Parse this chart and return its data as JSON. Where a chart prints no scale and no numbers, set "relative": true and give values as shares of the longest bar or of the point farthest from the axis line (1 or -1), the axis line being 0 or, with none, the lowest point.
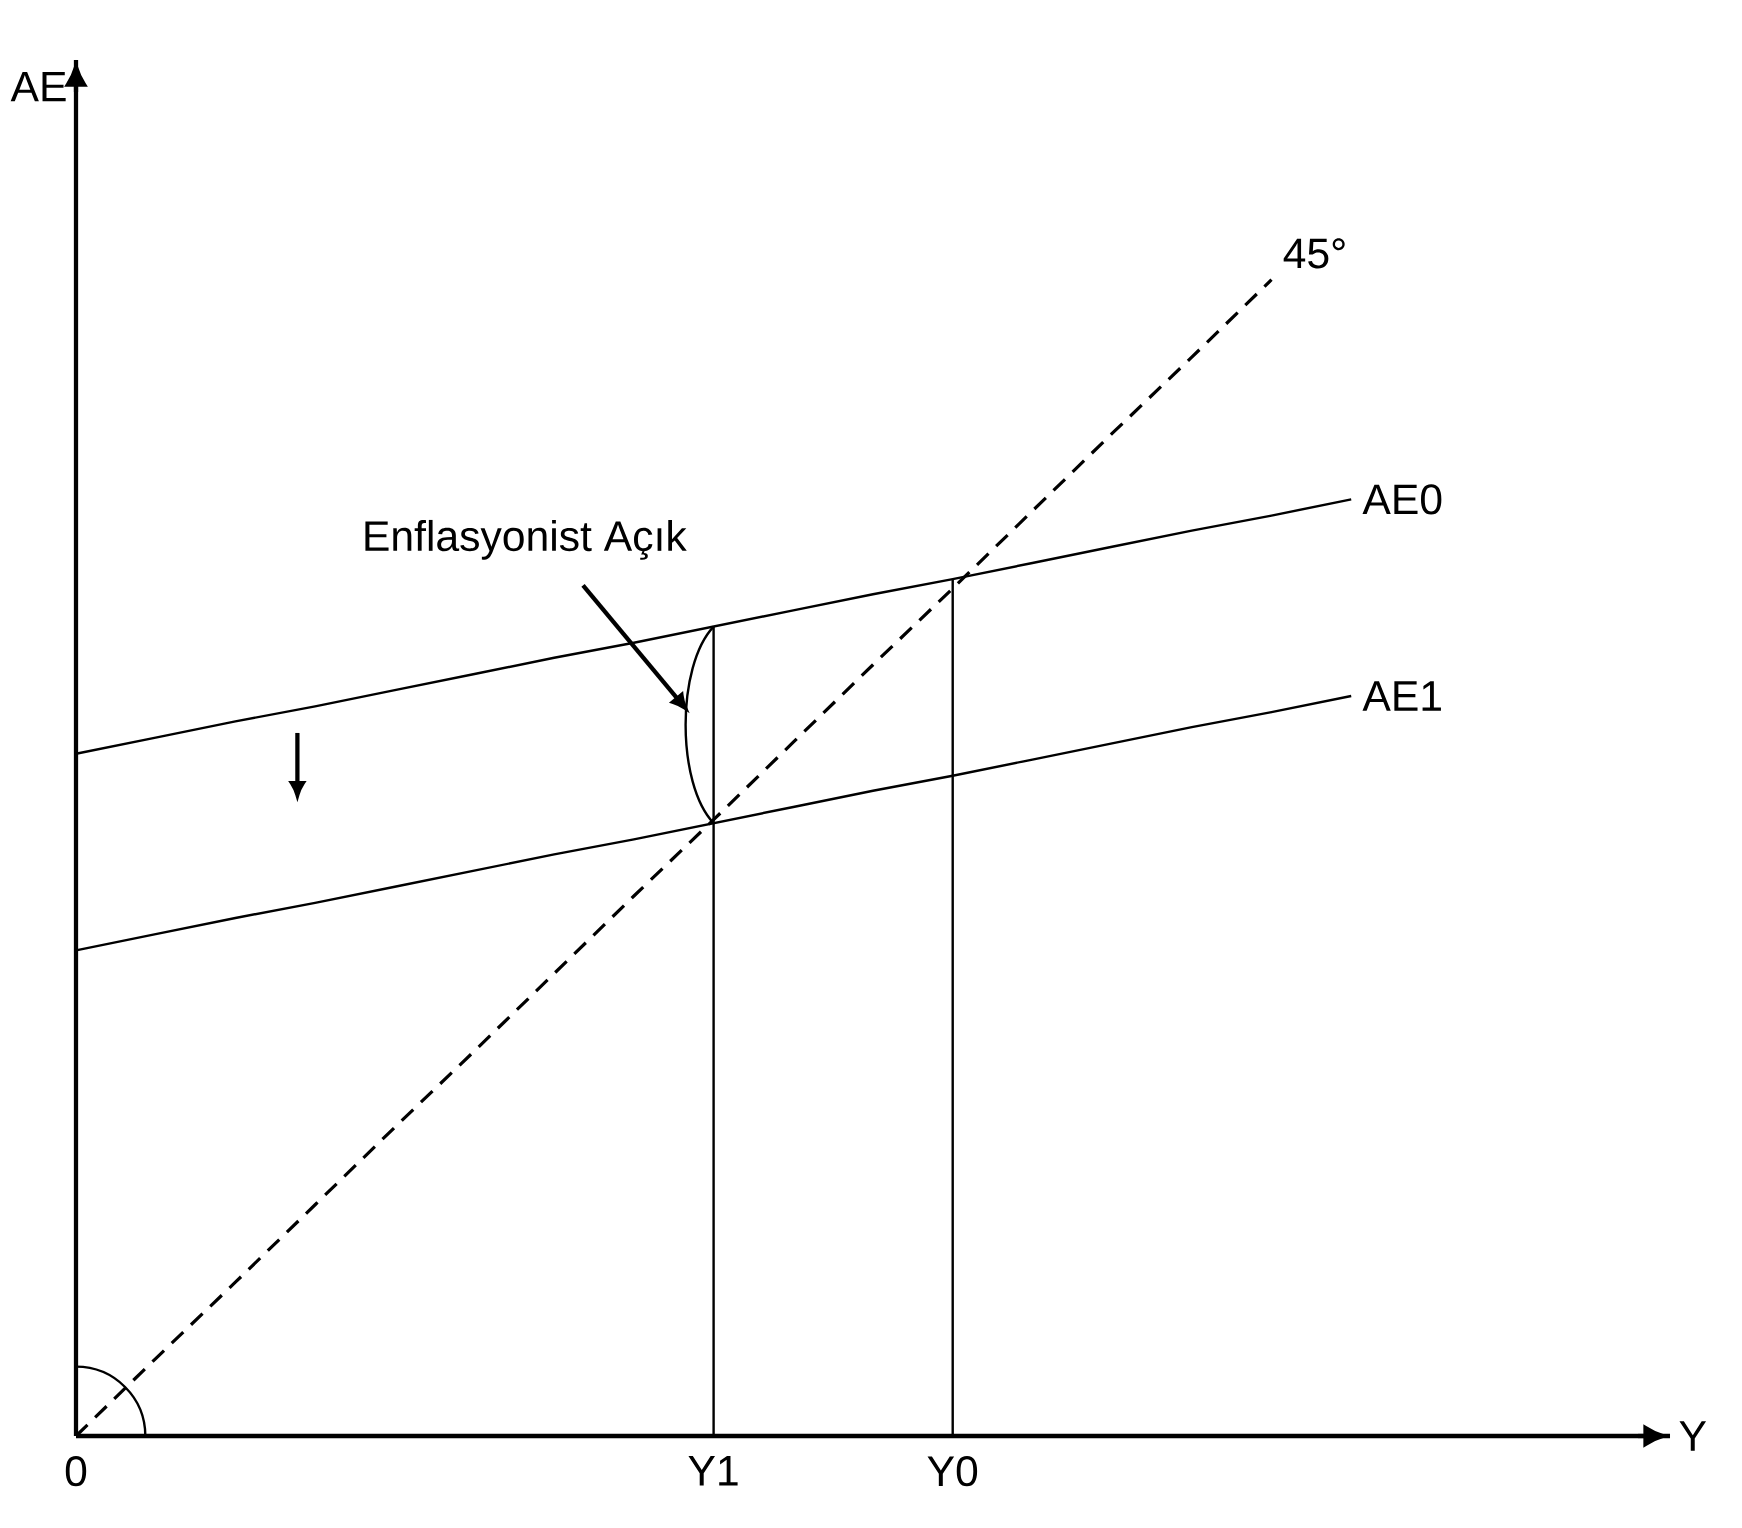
{
  "chart_data": {
    "type": "line",
    "relative": true,
    "xlabel": "Y",
    "ylabel": "AE",
    "categories": [
      "0",
      null,
      null,
      null,
      null,
      null,
      null,
      null,
      "Y1",
      null,
      null,
      "Y0",
      null,
      null,
      null,
      null,
      null,
      null,
      null,
      null,
      null
    ],
    "marker": "none",
    "legend": false,
    "grid": false,
    "series": [
      {
        "name": "AE0",
        "color": "#000000",
        "line_style": "solid",
        "values": [
          0.59,
          0.604,
          0.618,
          0.631,
          0.645,
          0.659,
          0.673,
          0.686,
          0.7,
          0.714,
          0.728,
          0.741,
          0.755,
          0.769,
          0.783,
          0.796,
          0.81,
          null,
          null,
          null,
          null
        ]
      },
      {
        "name": "AE1",
        "color": "#000000",
        "line_style": "solid",
        "values": [
          0.42,
          0.434,
          0.448,
          0.461,
          0.475,
          0.489,
          0.503,
          0.516,
          0.53,
          0.544,
          0.558,
          0.571,
          0.585,
          0.599,
          0.613,
          0.626,
          0.64,
          null,
          null,
          null,
          null
        ]
      },
      {
        "name": "45°",
        "color": "#000000",
        "line_style": "dashed",
        "values": [
          0,
          0.067,
          0.133,
          0.2,
          0.267,
          0.333,
          0.4,
          0.467,
          0.533,
          0.6,
          0.667,
          0.733,
          0.8,
          0.867,
          0.933,
          1,
          null,
          null,
          null,
          null,
          null
        ]
      }
    ],
    "ref_lines": [
      {
        "axis": "x",
        "value": "Y1",
        "color": "#000000"
      },
      {
        "axis": "x",
        "value": "Y0",
        "color": "#000000"
      }
    ],
    "annotations": [
      "Enflasyonist Açık"
    ]
  }
}
